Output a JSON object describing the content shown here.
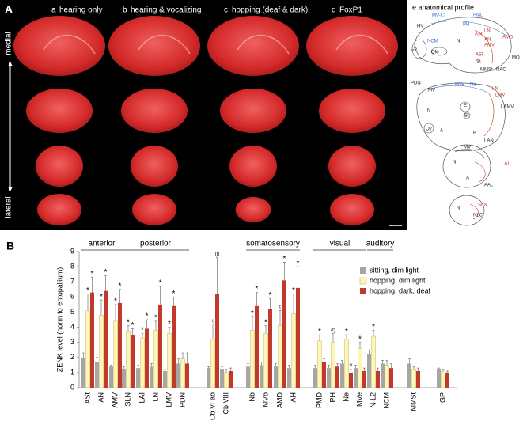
{
  "panel_a": {
    "label": "A",
    "columns": [
      {
        "letter": "a",
        "title": "hearing only"
      },
      {
        "letter": "b",
        "title": "hearing & vocalizing"
      },
      {
        "letter": "c",
        "title": "hopping (deaf & dark)"
      },
      {
        "letter": "d",
        "title": "FoxP1"
      }
    ],
    "axis": {
      "top": "medial",
      "bottom": "lateral"
    }
  },
  "panel_e": {
    "title": "e  anatomical profile",
    "labels": [
      "MV-L2",
      "PMD",
      "HV",
      "PH",
      "AMD",
      "ASt",
      "LN",
      "AN",
      "AMV",
      "NCM",
      "N",
      "Cb",
      "OM",
      "ASI",
      "St",
      "MO",
      "MMSt",
      "NAO",
      "PDN",
      "MV",
      "MVe",
      "Ne",
      "LN",
      "LMV",
      "N",
      "E",
      "LAMV",
      "Bt",
      "A",
      "Ov",
      "B",
      "LAN",
      "MV",
      "N",
      "LAI",
      "A",
      "AAc",
      "N",
      "SLN",
      "NLC"
    ]
  },
  "chart_data": {
    "type": "bar",
    "panel_label": "B",
    "ylabel": "ZENK level (norm to entopallium)",
    "ylim": [
      0,
      9
    ],
    "yticks": [
      0,
      1,
      2,
      3,
      4,
      5,
      6,
      7,
      8,
      9
    ],
    "groups": [
      "anterior",
      "posterior",
      "somatosensory",
      "visual",
      "auditory"
    ],
    "categories": [
      "ASt",
      "AN",
      "AMV",
      "SLN",
      "LAI",
      "LN",
      "LMV",
      "PDN",
      "Cb VI ab",
      "Cb VIII",
      "Nb",
      "MVb",
      "AMD",
      "AH",
      "PMD",
      "PH",
      "Ne",
      "MVe",
      "N-L2",
      "NCM",
      "MMSt",
      "GP"
    ],
    "legend": "upper right",
    "series": [
      {
        "name": "sitting, dim light",
        "color": "#a6a6a6",
        "values": [
          2.0,
          1.7,
          1.4,
          1.2,
          1.3,
          1.4,
          1.1,
          1.6,
          1.3,
          1.2,
          1.4,
          1.5,
          1.4,
          1.3,
          1.3,
          1.3,
          1.6,
          1.3,
          2.2,
          1.6,
          1.6,
          1.2
        ],
        "errors": [
          0.3,
          0.3,
          0.1,
          0.2,
          0.2,
          0.2,
          0.1,
          0.3,
          0.1,
          0.2,
          0.2,
          0.2,
          0.2,
          0.2,
          0.2,
          0.2,
          0.2,
          0.2,
          0.3,
          0.2,
          0.3,
          0.1
        ],
        "markers": [
          null,
          null,
          null,
          null,
          null,
          null,
          null,
          null,
          null,
          null,
          null,
          null,
          null,
          null,
          null,
          null,
          null,
          null,
          null,
          null,
          null,
          null
        ]
      },
      {
        "name": "hopping, dim light",
        "color": "#fdf6b5",
        "values": [
          5.1,
          4.8,
          4.4,
          3.7,
          3.3,
          3.8,
          3.6,
          1.9,
          3.2,
          1.0,
          3.8,
          3.6,
          4.1,
          4.9,
          3.1,
          3.0,
          3.2,
          2.6,
          3.4,
          1.5,
          1.2,
          1.1
        ],
        "errors": [
          1.1,
          1.0,
          1.1,
          0.4,
          0.3,
          0.6,
          0.4,
          0.4,
          1.0,
          0.2,
          0.9,
          0.5,
          1.0,
          1.3,
          0.4,
          0.6,
          0.3,
          0.4,
          0.4,
          0.3,
          0.2,
          0.1
        ],
        "markers": [
          "*",
          "*",
          "*",
          "*",
          "*",
          "*",
          "*",
          null,
          "t",
          null,
          "*",
          "*",
          "t",
          "*",
          "*",
          "(t)",
          "*",
          "*",
          "*",
          null,
          null,
          null
        ]
      },
      {
        "name": "hopping, dark, deaf",
        "color": "#c0392b",
        "values": [
          6.3,
          6.4,
          5.6,
          3.5,
          3.9,
          5.5,
          5.4,
          1.6,
          6.2,
          1.1,
          5.4,
          5.2,
          7.1,
          6.6,
          1.7,
          1.4,
          1.0,
          1.1,
          1.1,
          1.3,
          1.1,
          1.0
        ],
        "errors": [
          1.0,
          1.0,
          0.9,
          0.4,
          0.6,
          1.2,
          0.6,
          0.7,
          2.4,
          0.2,
          0.9,
          0.7,
          1.2,
          1.4,
          0.2,
          0.2,
          0.2,
          0.2,
          0.2,
          0.3,
          0.2,
          0.1
        ],
        "markers": [
          "*",
          "*",
          "*",
          "*",
          "*",
          "*",
          "*",
          null,
          "(t)",
          null,
          "*",
          "*",
          "*",
          "*",
          null,
          null,
          "*",
          null,
          null,
          null,
          null,
          null
        ]
      }
    ]
  }
}
